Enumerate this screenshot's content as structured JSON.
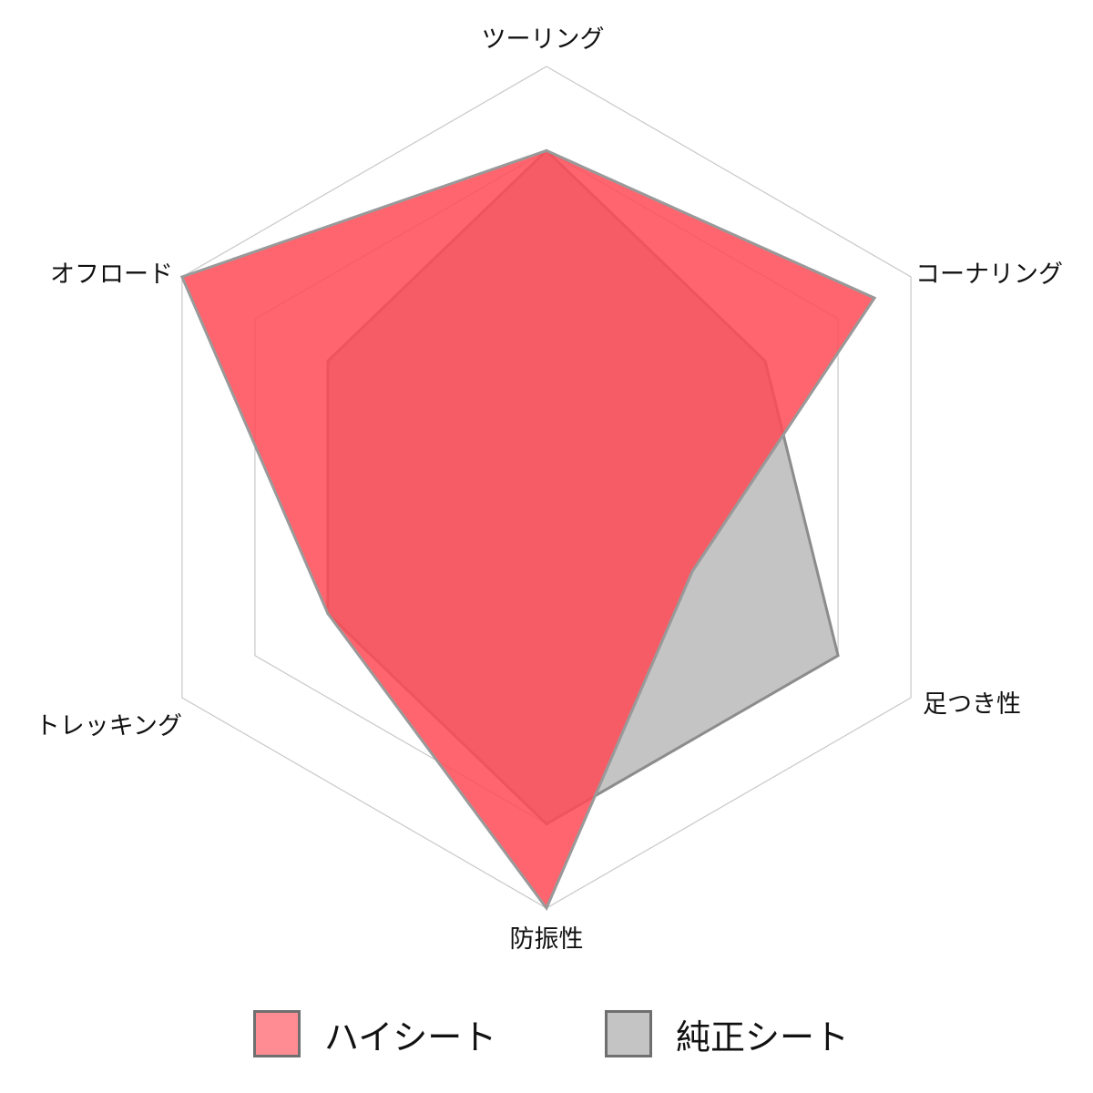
{
  "chart_data": {
    "type": "radar",
    "axes": [
      "ツーリング",
      "コーナリング",
      "足つき性",
      "防振性",
      "トレッキング",
      "オフロード"
    ],
    "rmax": 5,
    "grid_levels": [
      2,
      3,
      4,
      5
    ],
    "series": [
      {
        "name": "純正シート",
        "values": [
          4,
          3,
          4,
          4,
          3,
          3
        ],
        "fill": "#c4c4c4",
        "stroke": "#8c8c8c"
      },
      {
        "name": "ハイシート",
        "values": [
          4,
          4.5,
          2,
          5,
          3,
          5
        ],
        "fill": "#ff4a55",
        "stroke": "#999999"
      }
    ],
    "legend_position": "bottom",
    "grid": true
  },
  "legend": {
    "items": [
      {
        "label": "ハイシート",
        "color": "#ff8c92"
      },
      {
        "label": "純正シート",
        "color": "#c4c4c4"
      }
    ]
  }
}
